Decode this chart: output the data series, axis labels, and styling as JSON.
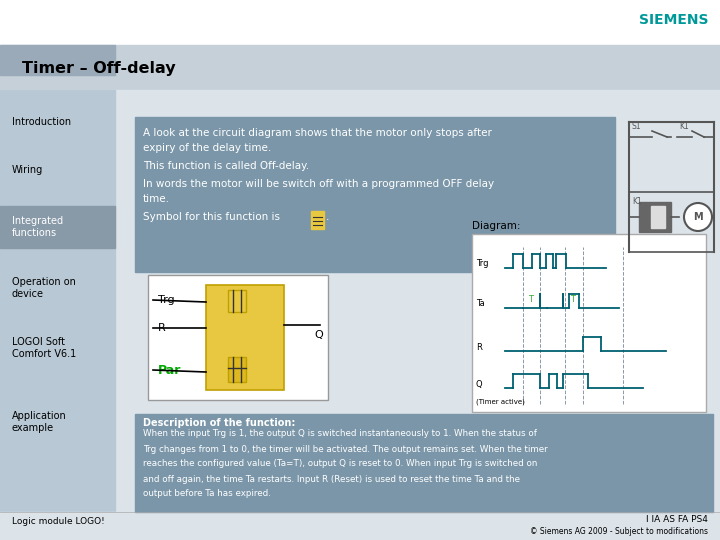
{
  "title": "Timer – Off-delay",
  "siemens_color": "#009999",
  "bg_white": "#ffffff",
  "bg_header": "#c5d0d8",
  "bg_content": "#dce4ea",
  "sidebar_bg": "#b8c8d4",
  "sidebar_highlight": "#8899a8",
  "sidebar_items": [
    "Introduction",
    "Wiring",
    "Integrated\nfunctions",
    "Operation on\ndevice",
    "LOGOI Soft\nComfort V6.1",
    "Application\nexample"
  ],
  "sidebar_active": 2,
  "intro_box_color": "#7a96a8",
  "desc_box_color": "#7a96a8",
  "desc_title": "Description of the function:",
  "desc_text": "When the input Trg is 1, the output Q is switched instantaneously to 1. When the status of\nTrg changes from 1 to 0, the timer will be activated. The output remains set. When the timer\nreaches the configured value (Ta=T), output Q is reset to 0. When input Trg is switched on\nand off again, the time Ta restarts. Input R (Reset) is used to reset the time Ta and the\noutput before Ta has expired.",
  "footer_left": "Logic module LOGO!",
  "footer_right1": "I IA AS FA PS4",
  "footer_right2": "© Siemens AG 2009 - Subject to modifications",
  "diagram_label": "Diagram:",
  "sig_color": "#006070",
  "dashed_color": "#8899aa",
  "T_label_color": "#33aa33"
}
